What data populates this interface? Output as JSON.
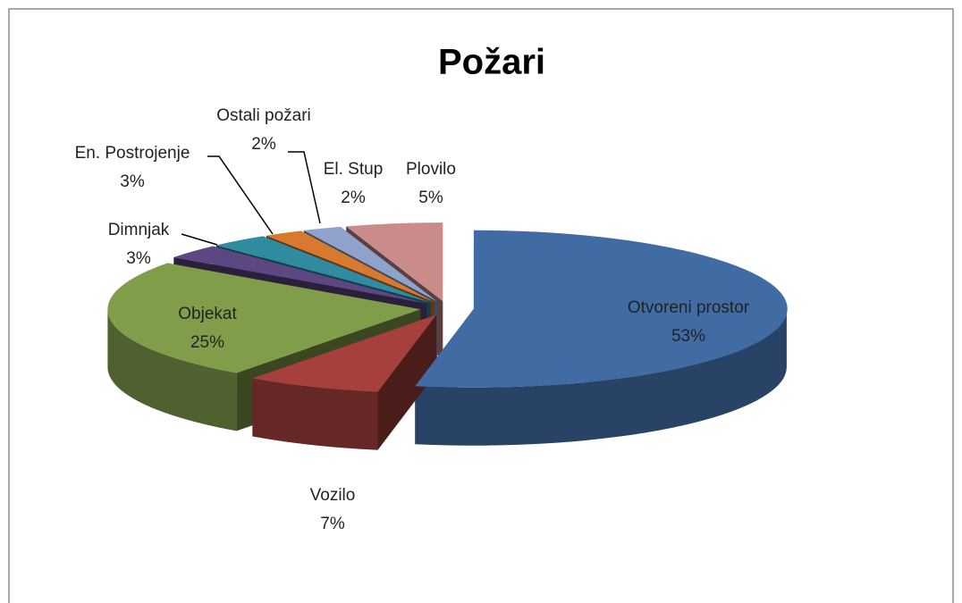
{
  "chart_data": {
    "type": "pie",
    "title": "Požari",
    "categories": [
      "Otvoreni prostor",
      "Vozilo",
      "Objekat",
      "Dimnjak",
      "En. Postrojenje",
      "Ostali požari",
      "El. Stup",
      "Plovilo"
    ],
    "values": [
      53,
      7,
      25,
      3,
      3,
      2,
      2,
      5
    ],
    "value_labels": [
      "53%",
      "7%",
      "25%",
      "3%",
      "3%",
      "2%",
      "2%",
      "5%"
    ],
    "colors": [
      "#416ca3",
      "#a5403d",
      "#809d4a",
      "#5d4783",
      "#2f8ba0",
      "#d77a30",
      "#8ea2cb",
      "#c98c8b"
    ]
  }
}
